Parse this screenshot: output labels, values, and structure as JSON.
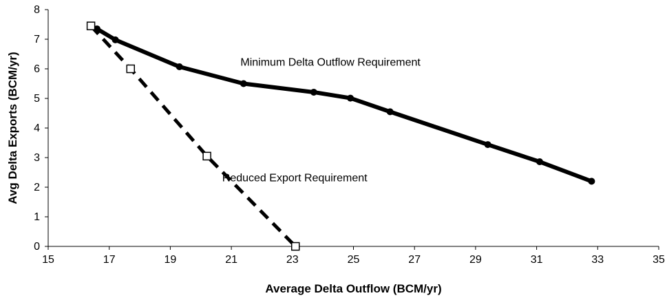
{
  "chart_data": {
    "type": "line",
    "title": "",
    "xlabel": "Average Delta Outflow (BCM/yr)",
    "ylabel": "Avg Delta Exports (BCM/yr)",
    "xlim": [
      15,
      35
    ],
    "ylim": [
      0,
      8
    ],
    "x_ticks": [
      "15",
      "17",
      "19",
      "21",
      "23",
      "25",
      "27",
      "29",
      "31",
      "33",
      "35"
    ],
    "y_ticks": [
      "0",
      "1",
      "2",
      "3",
      "4",
      "5",
      "6",
      "7",
      "8"
    ],
    "grid": false,
    "legend": "none",
    "series": [
      {
        "name": "Minimum Delta Outflow Requirement",
        "style": "solid",
        "marker": "filled-circle",
        "color": "#000000",
        "x": [
          16.4,
          16.6,
          17.2,
          19.3,
          21.4,
          23.7,
          24.9,
          26.2,
          29.4,
          31.1,
          32.8
        ],
        "y": [
          7.45,
          7.35,
          6.98,
          6.07,
          5.5,
          5.21,
          5.01,
          4.55,
          3.44,
          2.86,
          2.2
        ]
      },
      {
        "name": "Reduced Export Requirement",
        "style": "dashed",
        "marker": "open-square",
        "color": "#000000",
        "x": [
          16.4,
          17.7,
          20.2,
          23.1
        ],
        "y": [
          7.45,
          6.0,
          3.05,
          0.0
        ]
      }
    ],
    "annotations": [
      {
        "text": "Minimum Delta Outflow Requirement",
        "x": 21.3,
        "y": 6.1
      },
      {
        "text": "Reduced Export Requirement",
        "x": 20.7,
        "y": 2.2
      }
    ]
  }
}
